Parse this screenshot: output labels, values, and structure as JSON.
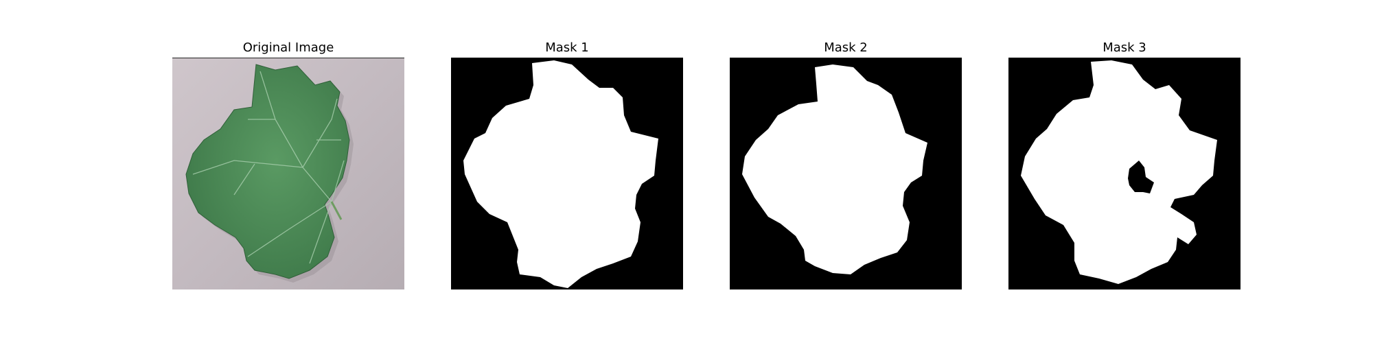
{
  "figure": {
    "background": "#ffffff",
    "panels": [
      {
        "title": "Original Image",
        "kind": "photo",
        "subject": "green grape leaf on grey surface"
      },
      {
        "title": "Mask 1",
        "kind": "binary-mask"
      },
      {
        "title": "Mask 2",
        "kind": "binary-mask"
      },
      {
        "title": "Mask 3",
        "kind": "binary-mask"
      }
    ]
  },
  "colors": {
    "mask_foreground": "#ffffff",
    "mask_background": "#000000",
    "leaf": "#4f8f5a",
    "leaf_dark": "#3b7346",
    "surface": "#c5bcc2"
  }
}
